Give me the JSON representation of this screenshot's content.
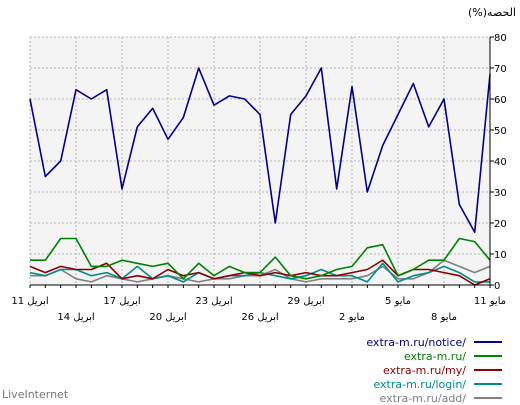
{
  "brand": "LiveInternet",
  "chart_data": {
    "type": "line",
    "ylabel": "(%)الحصه",
    "ylim": [
      0,
      80
    ],
    "yticks": [
      0,
      10,
      20,
      30,
      40,
      50,
      60,
      70,
      80
    ],
    "grid": true,
    "legend_position": "bottom-right",
    "x_count": 31,
    "x_tick_labels": [
      {
        "i": 0,
        "label": "11 مايو",
        "row": 1
      },
      {
        "i": 3,
        "label": "8 مايو",
        "row": 2
      },
      {
        "i": 6,
        "label": "5 مايو",
        "row": 1
      },
      {
        "i": 9,
        "label": "2 مايو",
        "row": 2
      },
      {
        "i": 12,
        "label": "29 ابريل",
        "row": 1
      },
      {
        "i": 15,
        "label": "26 ابريل",
        "row": 2
      },
      {
        "i": 18,
        "label": "23 ابريل",
        "row": 1
      },
      {
        "i": 21,
        "label": "20 ابريل",
        "row": 2
      },
      {
        "i": 24,
        "label": "17 ابريل",
        "row": 1
      },
      {
        "i": 27,
        "label": "14 ابريل",
        "row": 2
      },
      {
        "i": 30,
        "label": "11 ابريل",
        "row": 1
      }
    ],
    "series": [
      {
        "name": "extra-m.ru/notice/",
        "color": "#00008b",
        "values": [
          68,
          17,
          26,
          60,
          51,
          65,
          55,
          45,
          30,
          64,
          31,
          70,
          61,
          55,
          20,
          55,
          60,
          61,
          58,
          70,
          54,
          47,
          57,
          51,
          31,
          63,
          60,
          63,
          40,
          35,
          60
        ]
      },
      {
        "name": "extra-m.ru/",
        "color": "#008000",
        "values": [
          8,
          14,
          15,
          8,
          8,
          5,
          3,
          13,
          12,
          6,
          5,
          3,
          2,
          3,
          9,
          4,
          4,
          6,
          3,
          7,
          2,
          7,
          6,
          7,
          8,
          6,
          6,
          15,
          15,
          8,
          8
        ]
      },
      {
        "name": "extra-m.ru/my/",
        "color": "#8b0000",
        "values": [
          2,
          0,
          3,
          4,
          5,
          5,
          3,
          8,
          5,
          4,
          3,
          3,
          4,
          3,
          4,
          3,
          4,
          3,
          2,
          4,
          3,
          5,
          2,
          3,
          2,
          7,
          5,
          5,
          6,
          4,
          6
        ]
      },
      {
        "name": "extra-m.ru/login/",
        "color": "#008b8b",
        "values": [
          1,
          1,
          4,
          6,
          4,
          3,
          1,
          7,
          1,
          3,
          3,
          5,
          3,
          2,
          3,
          4,
          3,
          3,
          2,
          4,
          1,
          3,
          2,
          6,
          2,
          4,
          3,
          5,
          5,
          3,
          4
        ]
      },
      {
        "name": "extra-m.ru/add/",
        "color": "#808080",
        "values": [
          6,
          4,
          6,
          8,
          4,
          2,
          2,
          6,
          3,
          2,
          2,
          2,
          1,
          2,
          5,
          3,
          3,
          2,
          2,
          1,
          2,
          3,
          2,
          1,
          2,
          3,
          1,
          2,
          5,
          3,
          3
        ]
      }
    ]
  }
}
